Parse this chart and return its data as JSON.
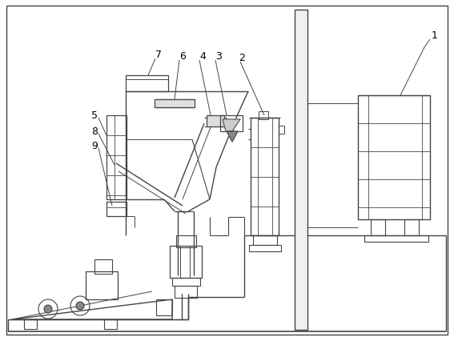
{
  "bg_color": "#ffffff",
  "lc": "#444444",
  "figsize": [
    5.67,
    4.27
  ],
  "dpi": 100,
  "xlim": [
    0,
    567
  ],
  "ylim": [
    427,
    0
  ]
}
